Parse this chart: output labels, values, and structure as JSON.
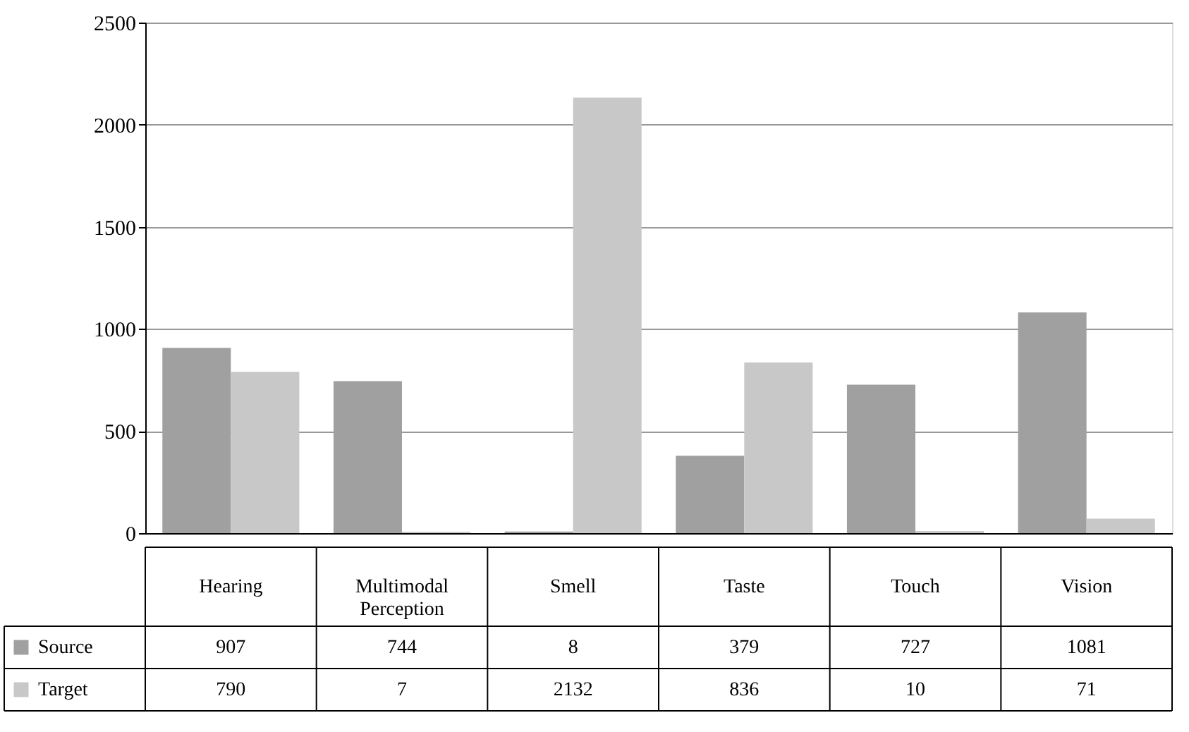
{
  "chart_data": {
    "type": "bar",
    "categories": [
      "Hearing",
      "Multimodal Perception",
      "Smell",
      "Taste",
      "Touch",
      "Vision"
    ],
    "series": [
      {
        "name": "Source",
        "color": "#a0a0a0",
        "values": [
          907,
          744,
          8,
          379,
          727,
          1081
        ]
      },
      {
        "name": "Target",
        "color": "#c8c8c8",
        "values": [
          790,
          7,
          2132,
          836,
          10,
          71
        ]
      }
    ],
    "ylim": [
      0,
      2500
    ],
    "yticks": [
      0,
      500,
      1000,
      1500,
      2000,
      2500
    ],
    "grid": "y",
    "legend": "bottom",
    "data_labels": true
  }
}
